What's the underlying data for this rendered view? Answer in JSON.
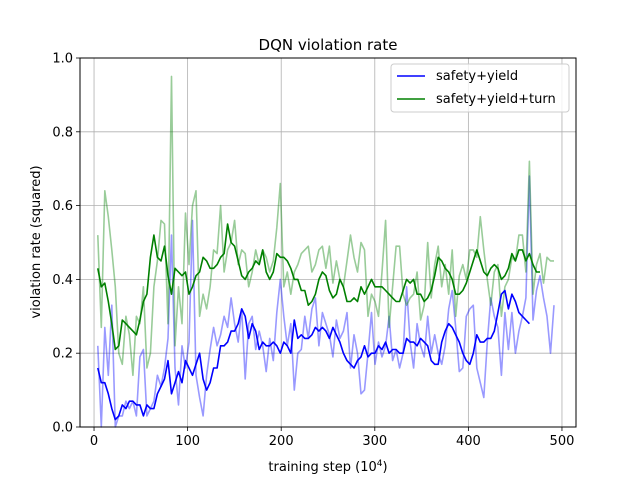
{
  "chart_data": {
    "type": "line",
    "title": "DQN violation rate",
    "xlabel": "training step (10",
    "xlabel_exponent": "4",
    "xlabel_close": ")",
    "ylabel": "violation rate (squared)",
    "xlim": [
      -15,
      515
    ],
    "ylim": [
      0,
      1
    ],
    "xticks": [
      0,
      100,
      200,
      300,
      400,
      500
    ],
    "yticks": [
      0.0,
      0.2,
      0.4,
      0.6,
      0.8,
      1.0
    ],
    "ytick_labels": [
      "0.0",
      "0.2",
      "0.4",
      "0.6",
      "0.8",
      "1.0"
    ],
    "grid": true,
    "legend_position": "top-right",
    "raw_x": {
      "start": 4,
      "step": 3.75,
      "count": 131
    },
    "smooth_x": {
      "start": 4,
      "step": 3.75,
      "count": 127
    },
    "series": [
      {
        "name": "safety+yield",
        "color": "#0000ff",
        "raw_alpha": 0.4,
        "raw_values": [
          0.22,
          0.0,
          0.27,
          0.14,
          0.33,
          0.0,
          0.03,
          0.03,
          0.07,
          0.05,
          0.07,
          0.03,
          0.19,
          0.21,
          0.03,
          0.05,
          0.07,
          0.14,
          0.11,
          0.16,
          0.24,
          0.52,
          0.16,
          0.06,
          0.22,
          0.16,
          0.23,
          0.56,
          0.14,
          0.08,
          0.03,
          0.14,
          0.21,
          0.27,
          0.22,
          0.25,
          0.3,
          0.27,
          0.35,
          0.28,
          0.23,
          0.32,
          0.13,
          0.28,
          0.3,
          0.21,
          0.26,
          0.22,
          0.15,
          0.24,
          0.18,
          0.31,
          0.4,
          0.3,
          0.22,
          0.28,
          0.1,
          0.2,
          0.21,
          0.3,
          0.24,
          0.32,
          0.35,
          0.22,
          0.31,
          0.28,
          0.25,
          0.19,
          0.29,
          0.24,
          0.26,
          0.31,
          0.16,
          0.25,
          0.2,
          0.09,
          0.1,
          0.2,
          0.31,
          0.17,
          0.23,
          0.19,
          0.22,
          0.3,
          0.18,
          0.21,
          0.16,
          0.2,
          0.38,
          0.23,
          0.16,
          0.28,
          0.22,
          0.19,
          0.3,
          0.2,
          0.25,
          0.2,
          0.17,
          0.22,
          0.32,
          0.37,
          0.27,
          0.15,
          0.16,
          0.3,
          0.32,
          0.33,
          0.16,
          0.12,
          0.08,
          0.23,
          0.35,
          0.3,
          0.27,
          0.14,
          0.31,
          0.21,
          0.31,
          0.2,
          0.26,
          0.3,
          0.35,
          0.68,
          0.29,
          0.37,
          0.41,
          0.35,
          0.3,
          0.2,
          0.33
        ],
        "smooth_values": [
          0.16,
          0.12,
          0.12,
          0.09,
          0.05,
          0.02,
          0.03,
          0.06,
          0.05,
          0.07,
          0.07,
          0.06,
          0.06,
          0.03,
          0.06,
          0.05,
          0.05,
          0.09,
          0.11,
          0.13,
          0.18,
          0.09,
          0.12,
          0.15,
          0.12,
          0.18,
          0.16,
          0.14,
          0.17,
          0.2,
          0.13,
          0.1,
          0.12,
          0.16,
          0.16,
          0.22,
          0.22,
          0.23,
          0.26,
          0.26,
          0.28,
          0.32,
          0.3,
          0.24,
          0.28,
          0.26,
          0.21,
          0.23,
          0.22,
          0.22,
          0.23,
          0.22,
          0.2,
          0.23,
          0.22,
          0.2,
          0.29,
          0.24,
          0.25,
          0.24,
          0.24,
          0.25,
          0.27,
          0.26,
          0.27,
          0.26,
          0.24,
          0.27,
          0.25,
          0.23,
          0.2,
          0.18,
          0.17,
          0.16,
          0.18,
          0.19,
          0.22,
          0.19,
          0.2,
          0.2,
          0.22,
          0.21,
          0.23,
          0.2,
          0.21,
          0.21,
          0.2,
          0.2,
          0.24,
          0.23,
          0.23,
          0.22,
          0.24,
          0.23,
          0.22,
          0.18,
          0.17,
          0.17,
          0.23,
          0.26,
          0.28,
          0.27,
          0.25,
          0.23,
          0.2,
          0.18,
          0.17,
          0.2,
          0.25,
          0.23,
          0.23,
          0.24,
          0.24,
          0.26,
          0.31,
          0.36,
          0.37,
          0.32,
          0.36,
          0.34,
          0.31,
          0.3,
          0.29,
          0.28
        ]
      },
      {
        "name": "safety+yield+turn",
        "color": "#008000",
        "raw_alpha": 0.4,
        "raw_values": [
          0.52,
          0.27,
          0.64,
          0.57,
          0.48,
          0.38,
          0.2,
          0.17,
          0.3,
          0.25,
          0.14,
          0.3,
          0.28,
          0.38,
          0.16,
          0.2,
          0.38,
          0.45,
          0.56,
          0.55,
          0.28,
          0.95,
          0.22,
          0.38,
          0.28,
          0.58,
          0.44,
          0.6,
          0.64,
          0.3,
          0.36,
          0.32,
          0.38,
          0.48,
          0.47,
          0.6,
          0.42,
          0.48,
          0.5,
          0.56,
          0.44,
          0.48,
          0.47,
          0.38,
          0.42,
          0.48,
          0.44,
          0.48,
          0.46,
          0.42,
          0.45,
          0.54,
          0.66,
          0.38,
          0.42,
          0.36,
          0.42,
          0.44,
          0.47,
          0.48,
          0.49,
          0.42,
          0.44,
          0.48,
          0.49,
          0.43,
          0.49,
          0.39,
          0.45,
          0.4,
          0.38,
          0.45,
          0.52,
          0.46,
          0.42,
          0.5,
          0.48,
          0.3,
          0.36,
          0.34,
          0.3,
          0.42,
          0.56,
          0.27,
          0.38,
          0.49,
          0.49,
          0.36,
          0.33,
          0.35,
          0.36,
          0.42,
          0.29,
          0.33,
          0.5,
          0.35,
          0.44,
          0.49,
          0.38,
          0.44,
          0.36,
          0.48,
          0.3,
          0.41,
          0.44,
          0.4,
          0.48,
          0.48,
          0.46,
          0.57,
          0.48,
          0.4,
          0.33,
          0.42,
          0.44,
          0.3,
          0.38,
          0.4,
          0.46,
          0.45,
          0.52,
          0.52,
          0.42,
          0.72,
          0.36,
          0.44,
          0.47,
          0.39,
          0.46,
          0.45,
          0.45
        ],
        "smooth_values": [
          0.43,
          0.38,
          0.39,
          0.34,
          0.28,
          0.21,
          0.22,
          0.29,
          0.28,
          0.27,
          0.26,
          0.25,
          0.29,
          0.34,
          0.36,
          0.46,
          0.52,
          0.46,
          0.45,
          0.49,
          0.41,
          0.36,
          0.43,
          0.42,
          0.41,
          0.42,
          0.36,
          0.38,
          0.41,
          0.42,
          0.46,
          0.45,
          0.43,
          0.43,
          0.44,
          0.46,
          0.47,
          0.55,
          0.5,
          0.49,
          0.45,
          0.41,
          0.4,
          0.42,
          0.43,
          0.45,
          0.44,
          0.48,
          0.42,
          0.4,
          0.42,
          0.47,
          0.46,
          0.46,
          0.45,
          0.43,
          0.4,
          0.4,
          0.37,
          0.37,
          0.33,
          0.34,
          0.36,
          0.4,
          0.42,
          0.41,
          0.37,
          0.35,
          0.36,
          0.4,
          0.38,
          0.34,
          0.34,
          0.35,
          0.34,
          0.38,
          0.36,
          0.38,
          0.4,
          0.38,
          0.38,
          0.38,
          0.37,
          0.36,
          0.35,
          0.34,
          0.34,
          0.37,
          0.4,
          0.39,
          0.4,
          0.36,
          0.36,
          0.34,
          0.35,
          0.37,
          0.41,
          0.46,
          0.45,
          0.43,
          0.42,
          0.4,
          0.36,
          0.36,
          0.37,
          0.39,
          0.42,
          0.45,
          0.48,
          0.45,
          0.42,
          0.41,
          0.43,
          0.44,
          0.43,
          0.4,
          0.41,
          0.43,
          0.47,
          0.45,
          0.48,
          0.48,
          0.45,
          0.47,
          0.44,
          0.42,
          0.42
        ]
      }
    ]
  }
}
